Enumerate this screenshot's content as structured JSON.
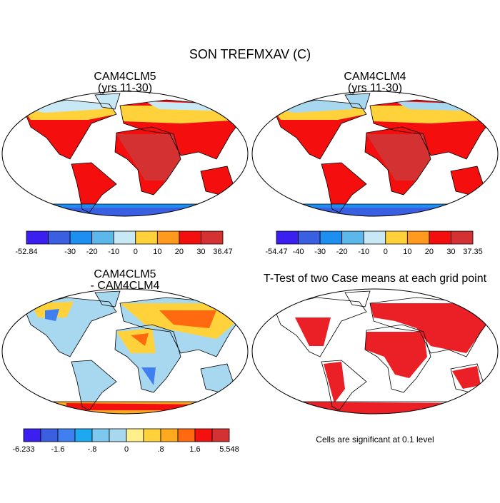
{
  "title": "SON TREFMXAV (C)",
  "panels": [
    {
      "title": "CAM4CLM5",
      "subtitle": "(yrs 11-30)",
      "colorbar": {
        "colors": [
          "#3b1ef0",
          "#3a5fe0",
          "#1d8ff0",
          "#5cb8ea",
          "#c8e8f6",
          "#ffd23c",
          "#ff9a1e",
          "#f50e0e",
          "#d43232"
        ],
        "labels": [
          "-52.84",
          null,
          "-30",
          "-20",
          "-10",
          "0",
          "10",
          "20",
          "30",
          "36.47"
        ]
      }
    },
    {
      "title": "CAM4CLM4",
      "subtitle": "(yrs 11-30)",
      "colorbar": {
        "colors": [
          "#3b1ef0",
          "#3a5fe0",
          "#1d8ff0",
          "#5cb8ea",
          "#c8e8f6",
          "#ffd23c",
          "#ff9a1e",
          "#f50e0e",
          "#d43232"
        ],
        "labels": [
          "-54.47",
          "-40",
          "-30",
          "-20",
          "-10",
          "0",
          "10",
          "20",
          "30",
          "37.35"
        ]
      }
    },
    {
      "title": "CAM4CLM5",
      "subtitle": "- CAM4CLM4",
      "colorbar": {
        "colors": [
          "#3b1ef0",
          "#3a5fe0",
          "#3f7ff0",
          "#1da8f0",
          "#7cc8ee",
          "#a8d8f0",
          "#fff08c",
          "#ffd23c",
          "#ffaa1e",
          "#ff6a10",
          "#f51010",
          "#d43232"
        ],
        "labels": [
          "-6.233",
          null,
          "-1.6",
          null,
          "-.8",
          null,
          "0",
          null,
          ".8",
          null,
          "1.6",
          null,
          "5.548"
        ]
      }
    },
    {
      "title": "T-Test of two Case means at each grid point",
      "note": "Cells are significant at 0.1 level"
    }
  ]
}
